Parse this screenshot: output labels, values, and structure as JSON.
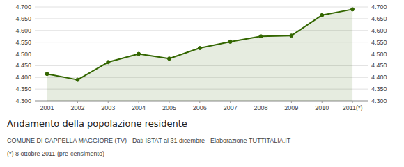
{
  "chart_data": {
    "type": "area",
    "title": "Andamento della popolazione residente",
    "subtitle": "COMUNE DI CAPPELLA MAGGIORE (TV)  ·  Dati ISTAT al 31 dicembre  ·  Elaborazione TUTTITALIA.IT",
    "annotations": [
      "(*) 8 ottobre 2011 (pre-censimento)"
    ],
    "x": [
      2001,
      2002,
      2003,
      2004,
      2005,
      2006,
      2007,
      2008,
      2009,
      2010,
      2011
    ],
    "values": [
      4415,
      4390,
      4465,
      4500,
      4480,
      4525,
      4552,
      4575,
      4578,
      4665,
      4690
    ],
    "color": "#336600",
    "marker": "circle",
    "xlim": [
      2000.6,
      2011.5
    ],
    "xticks": [
      2001,
      2002,
      2003,
      2004,
      2005,
      2006,
      2007,
      2008,
      2009,
      2010,
      {
        "value": 2011,
        "label": "2011(*)"
      }
    ],
    "ylim": [
      4300,
      4700
    ],
    "yticks": [
      {
        "value": 4300,
        "label": "4.300"
      },
      {
        "value": 4350,
        "label": "4.350"
      },
      {
        "value": 4400,
        "label": "4.400"
      },
      {
        "value": 4450,
        "label": "4.450"
      },
      {
        "value": 4500,
        "label": "4.500"
      },
      {
        "value": 4550,
        "label": "4.550"
      },
      {
        "value": 4600,
        "label": "4.600"
      },
      {
        "value": 4650,
        "label": "4.650"
      },
      {
        "value": 4700,
        "label": "4.700"
      }
    ],
    "grid": true
  }
}
